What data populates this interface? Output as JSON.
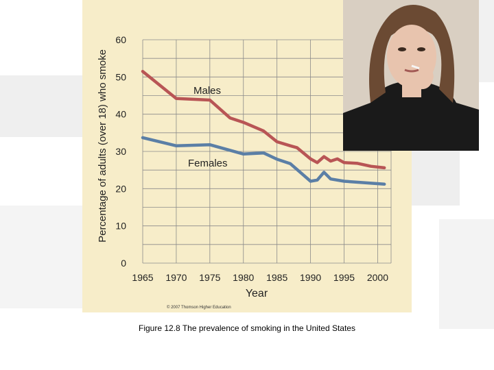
{
  "caption": "Figure 12.8 The prevalence of smoking in the United States",
  "copyright": "© 2007 Thomson Higher Education",
  "colors": {
    "panel_background": "#f7edc9",
    "males_line": "#b85555",
    "females_line": "#5b7fa6",
    "grid": "#8a8a8a"
  },
  "chart_data": {
    "type": "line",
    "title": "",
    "xlabel": "Year",
    "ylabel": "Percentage of adults (over 18) who smoke",
    "xlim": [
      1965,
      2002
    ],
    "ylim": [
      0,
      60
    ],
    "x_ticks": [
      1965,
      1970,
      1975,
      1980,
      1985,
      1990,
      1995,
      2000
    ],
    "y_ticks": [
      0,
      10,
      20,
      30,
      40,
      50,
      60
    ],
    "grid": true,
    "legend": "inline labels",
    "series": [
      {
        "name": "Males",
        "color": "#b85555",
        "points": [
          [
            1965,
            51.5
          ],
          [
            1970,
            44.2
          ],
          [
            1975,
            43.8
          ],
          [
            1978,
            39.0
          ],
          [
            1980,
            37.8
          ],
          [
            1983,
            35.5
          ],
          [
            1985,
            32.6
          ],
          [
            1987,
            31.5
          ],
          [
            1988,
            31.0
          ],
          [
            1990,
            28.0
          ],
          [
            1991,
            27.0
          ],
          [
            1992,
            28.6
          ],
          [
            1993,
            27.4
          ],
          [
            1994,
            28.0
          ],
          [
            1995,
            27.0
          ],
          [
            1997,
            26.8
          ],
          [
            1999,
            26.0
          ],
          [
            2001,
            25.6
          ]
        ]
      },
      {
        "name": "Females",
        "color": "#5b7fa6",
        "points": [
          [
            1965,
            33.7
          ],
          [
            1970,
            31.5
          ],
          [
            1975,
            31.8
          ],
          [
            1980,
            29.3
          ],
          [
            1983,
            29.6
          ],
          [
            1985,
            27.9
          ],
          [
            1987,
            26.7
          ],
          [
            1990,
            22.0
          ],
          [
            1991,
            22.3
          ],
          [
            1992,
            24.4
          ],
          [
            1993,
            22.6
          ],
          [
            1995,
            22.0
          ],
          [
            2001,
            21.2
          ]
        ]
      }
    ]
  }
}
